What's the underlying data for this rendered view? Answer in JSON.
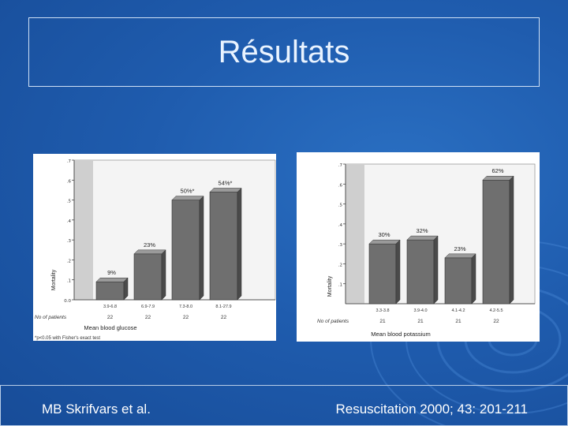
{
  "slide": {
    "title": "Résultats",
    "footer_left": "MB Skrifvars et al.",
    "footer_right": "Resuscitation 2000; 43: 201-211"
  },
  "chart_data": [
    {
      "type": "bar",
      "categories": [
        "3.9-6.8",
        "6.9-7.9",
        "7.3-8.0",
        "8.1-27.9"
      ],
      "values": [
        9,
        23,
        50,
        54
      ],
      "value_labels": [
        "9%",
        "23%",
        "50%*",
        "54%*"
      ],
      "patients_label": "No of patients",
      "patients": [
        "22",
        "22",
        "22",
        "22"
      ],
      "ylabel": "Mortality",
      "yticks": [
        "0.0",
        ".1",
        ".2",
        ".3",
        ".4",
        ".5",
        ".6",
        ".7"
      ],
      "ylim": [
        0,
        0.7
      ],
      "xlabel": "Mean blood glucose",
      "footnote": "*p<0.05 with Fisher's exact test",
      "colors": {
        "bar": "#6f6f6f",
        "bar_side": "#4a4a4a",
        "bar_top": "#9a9a9a",
        "back": "#cfcfcf"
      }
    },
    {
      "type": "bar",
      "categories": [
        "3.3-3.8",
        "3.9-4.0",
        "4.1-4.2",
        "4.2-5.5"
      ],
      "values": [
        30,
        32,
        23,
        62
      ],
      "value_labels": [
        "30%",
        "32%",
        "23%",
        "62%"
      ],
      "patients_label": "No of patients",
      "patients": [
        "21",
        "21",
        "21",
        "22"
      ],
      "ylabel": "Mortality",
      "yticks": [
        ".1",
        ".2",
        ".3",
        ".4",
        ".5",
        ".6",
        ".7"
      ],
      "ylim": [
        0,
        0.7
      ],
      "xlabel": "Mean blood potassium",
      "colors": {
        "bar": "#6f6f6f",
        "bar_side": "#4a4a4a",
        "bar_top": "#9a9a9a",
        "back": "#cfcfcf"
      }
    }
  ]
}
